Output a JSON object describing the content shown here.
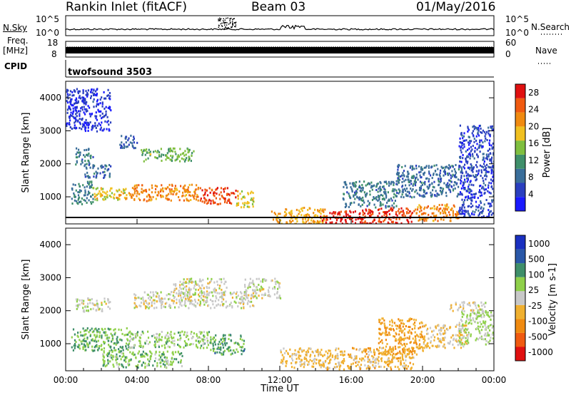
{
  "header": {
    "station": "Rankin Inlet (fitACF)",
    "beam": "Beam 03",
    "date": "01/May/2016"
  },
  "panels": {
    "nsky": {
      "label": "N.Sky",
      "tick_hi": "10^5",
      "tick_lo": "10^0",
      "right_label": "N.Search",
      "right_tick_hi": "10^5",
      "right_tick_lo": "10^0"
    },
    "freq": {
      "label_1": "Freq.",
      "label_2": "[MHz]",
      "tick_hi": "18",
      "tick_lo": "8",
      "right_label": "Nave",
      "right_tick_hi": "60",
      "right_tick_lo": "0"
    },
    "cpid": {
      "label": "CPID",
      "text": "twofsound 3503"
    }
  },
  "colors": {
    "power_scale": [
      "#1a1aff",
      "#2a3fbf",
      "#3a6e9a",
      "#3f8f6a",
      "#7fbf3f",
      "#f0c020",
      "#f08a10",
      "#f05a10",
      "#e01010"
    ],
    "velocity_scale": [
      "#e01010",
      "#f05a10",
      "#f08a10",
      "#f0b030",
      "#c8c8c8",
      "#8fd04a",
      "#3f8f6a",
      "#2a58a8",
      "#1a30c0"
    ]
  },
  "chart_data": [
    {
      "type": "heatmap",
      "title": "Power",
      "xlabel": "",
      "ylabel": "Slant Range [km]",
      "y_ticks": [
        "1000",
        "2000",
        "3000",
        "4000"
      ],
      "ylim": [
        180,
        4500
      ],
      "colorbar": {
        "label": "Power [dB]",
        "ticks": [
          "4",
          "8",
          "12",
          "16",
          "20",
          "24",
          "28"
        ],
        "range": [
          0,
          30
        ]
      },
      "regions": [
        {
          "x": [
            0.3,
            1.5
          ],
          "y": [
            800,
            1500
          ],
          "value": 10
        },
        {
          "x": [
            1.5,
            3.5
          ],
          "y": [
            900,
            1300
          ],
          "value": 18
        },
        {
          "x": [
            3.5,
            7.5
          ],
          "y": [
            900,
            1400
          ],
          "value": 22
        },
        {
          "x": [
            7.5,
            9.5
          ],
          "y": [
            800,
            1300
          ],
          "value": 26
        },
        {
          "x": [
            9.5,
            10.5
          ],
          "y": [
            700,
            1200
          ],
          "value": 18
        },
        {
          "x": [
            4.2,
            7.2
          ],
          "y": [
            2100,
            2500
          ],
          "value": 14
        },
        {
          "x": [
            0.5,
            1.5
          ],
          "y": [
            2000,
            2500
          ],
          "value": 9
        },
        {
          "x": [
            1.0,
            2.5
          ],
          "y": [
            1600,
            2000
          ],
          "value": 8
        },
        {
          "x": [
            3.0,
            4.0
          ],
          "y": [
            2500,
            2900
          ],
          "value": 7
        },
        {
          "x": [
            11.5,
            14.5
          ],
          "y": [
            200,
            700
          ],
          "value": 20
        },
        {
          "x": [
            14.2,
            16.5
          ],
          "y": [
            200,
            600
          ],
          "value": 28
        },
        {
          "x": [
            16.5,
            19.5
          ],
          "y": [
            200,
            700
          ],
          "value": 27
        },
        {
          "x": [
            19.5,
            22.0
          ],
          "y": [
            300,
            800
          ],
          "value": 22
        },
        {
          "x": [
            15.5,
            18.5
          ],
          "y": [
            700,
            1500
          ],
          "value": 9
        },
        {
          "x": [
            18.5,
            22.0
          ],
          "y": [
            1000,
            2000
          ],
          "value": 8
        },
        {
          "x": [
            22.0,
            24.0
          ],
          "y": [
            400,
            3200
          ],
          "value": 5
        },
        {
          "x": [
            0.0,
            2.5
          ],
          "y": [
            3000,
            4300
          ],
          "value": 4
        }
      ]
    },
    {
      "type": "heatmap",
      "title": "Velocity",
      "xlabel": "Time UT",
      "ylabel": "Slant Range [km]",
      "x_ticks": [
        "00:00",
        "04:00",
        "08:00",
        "12:00",
        "16:00",
        "20:00",
        "00:00"
      ],
      "y_ticks": [
        "1000",
        "2000",
        "3000",
        "4000"
      ],
      "ylim": [
        180,
        4500
      ],
      "colorbar": {
        "label": "Velocity [m s-1]",
        "ticks": [
          "1000",
          "500",
          "100",
          "25",
          "-25",
          "-100",
          "-500",
          "-1000"
        ],
        "range": [
          -1000,
          1000
        ]
      },
      "regions": [
        {
          "x": [
            0.3,
            3.5
          ],
          "y": [
            800,
            1500
          ],
          "value": 300
        },
        {
          "x": [
            3.5,
            8.0
          ],
          "y": [
            900,
            1400
          ],
          "value": 200
        },
        {
          "x": [
            8.0,
            10.0
          ],
          "y": [
            700,
            1300
          ],
          "value": 400
        },
        {
          "x": [
            2.0,
            6.5
          ],
          "y": [
            300,
            800
          ],
          "value": 250
        },
        {
          "x": [
            3.8,
            10.5
          ],
          "y": [
            2100,
            2600
          ],
          "value": 0
        },
        {
          "x": [
            0.5,
            2.5
          ],
          "y": [
            2000,
            2400
          ],
          "value": 0
        },
        {
          "x": [
            6.0,
            9.0
          ],
          "y": [
            2500,
            3000
          ],
          "value": 0
        },
        {
          "x": [
            10.0,
            12.0
          ],
          "y": [
            2400,
            3000
          ],
          "value": 0
        },
        {
          "x": [
            12.0,
            14.5
          ],
          "y": [
            300,
            900
          ],
          "value": -150
        },
        {
          "x": [
            14.5,
            19.5
          ],
          "y": [
            250,
            900
          ],
          "value": -200
        },
        {
          "x": [
            17.5,
            20.0
          ],
          "y": [
            700,
            1800
          ],
          "value": -300
        },
        {
          "x": [
            20.0,
            22.5
          ],
          "y": [
            900,
            1600
          ],
          "value": -150
        },
        {
          "x": [
            22.0,
            24.0
          ],
          "y": [
            1000,
            2000
          ],
          "value": 150
        },
        {
          "x": [
            21.5,
            23.5
          ],
          "y": [
            2000,
            2300
          ],
          "value": 0
        }
      ]
    }
  ],
  "axis": {
    "xlabel": "Time UT"
  }
}
